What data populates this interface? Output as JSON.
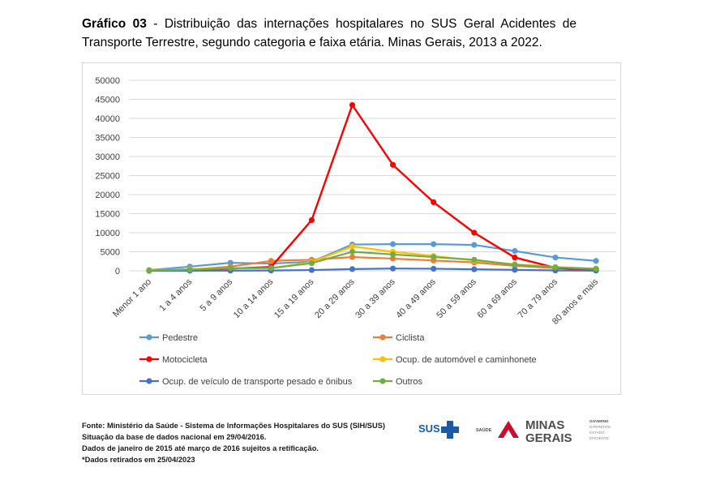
{
  "header": {
    "title_bold": "Gráfico 03",
    "title_rest": " - Distribuição das internações hospitalares no SUS Geral Acidentes de Transporte Terrestre, segundo categoria e faixa etária. Minas Gerais, 2013 a 2022."
  },
  "chart_data": {
    "type": "line",
    "categories": [
      "Menor 1 ano",
      "1 a 4 anos",
      "5 a 9 anos",
      "10 a 14 anos",
      "15 a 19 anos",
      "20 a 29 anos",
      "30 a 39 anos",
      "40 a 49 anos",
      "50 a 59 anos",
      "60 a 69 anos",
      "70 a 79 anos",
      "80 anos e mais"
    ],
    "yticks": [
      "50000",
      "45000",
      "40000",
      "35000",
      "30000",
      "25000",
      "20000",
      "15000",
      "10000",
      "5000",
      "0"
    ],
    "ylim": [
      0,
      50000
    ],
    "grid": "horizontal",
    "legend_position": "bottom",
    "series": [
      {
        "name": "Pedestre",
        "color": "#5B9BD5",
        "values": [
          200,
          1100,
          2100,
          1900,
          2400,
          6900,
          7000,
          7000,
          6800,
          5200,
          3500,
          2600
        ]
      },
      {
        "name": "Ciclista",
        "color": "#ED7D31",
        "values": [
          50,
          300,
          1100,
          2600,
          2900,
          3600,
          3200,
          2700,
          2200,
          1300,
          700,
          300
        ]
      },
      {
        "name": "Motocicleta",
        "color": "#FF0000",
        "values": [
          50,
          200,
          600,
          1000,
          13300,
          43500,
          27800,
          18000,
          10000,
          3500,
          800,
          200
        ]
      },
      {
        "name": "Ocup. de automóvel e caminhonete",
        "color": "#FFC000",
        "values": [
          150,
          450,
          700,
          700,
          2300,
          6400,
          5000,
          3900,
          2700,
          1700,
          1000,
          600
        ]
      },
      {
        "name": "Ocup. de veículo de transporte pesado e ônibus",
        "color": "#4472C4",
        "values": [
          0,
          30,
          60,
          80,
          200,
          450,
          600,
          550,
          400,
          250,
          100,
          50
        ]
      },
      {
        "name": "Outros",
        "color": "#70AD47",
        "values": [
          100,
          300,
          700,
          700,
          2000,
          5000,
          4300,
          3600,
          2900,
          1600,
          900,
          500
        ]
      }
    ]
  },
  "footer": {
    "line1": "Fonte: Ministério da Saúde - Sistema de Informações Hospitalares do SUS (SIH/SUS)",
    "line2": "Situação da base de dados nacional em 29/04/2016.",
    "line3": "Dados de janeiro de 2015 até março de 2016 sujeitos a retificação.",
    "line4": "*Dados retirados em 25/04/2023"
  },
  "logos": {
    "sus_text": "SUS",
    "saude_text": "SAÚDE",
    "minas_line1": "MINAS",
    "minas_line2": "GERAIS",
    "gov_line1": "GOVERNO",
    "gov_line2": "DIFERENTE.",
    "gov_line3": "ESTADO",
    "gov_line4": "EFICIENTE.",
    "sus_color": "#1A5BA6",
    "minas_red": "#C8102E",
    "minas_gray": "#4D4D4D"
  }
}
